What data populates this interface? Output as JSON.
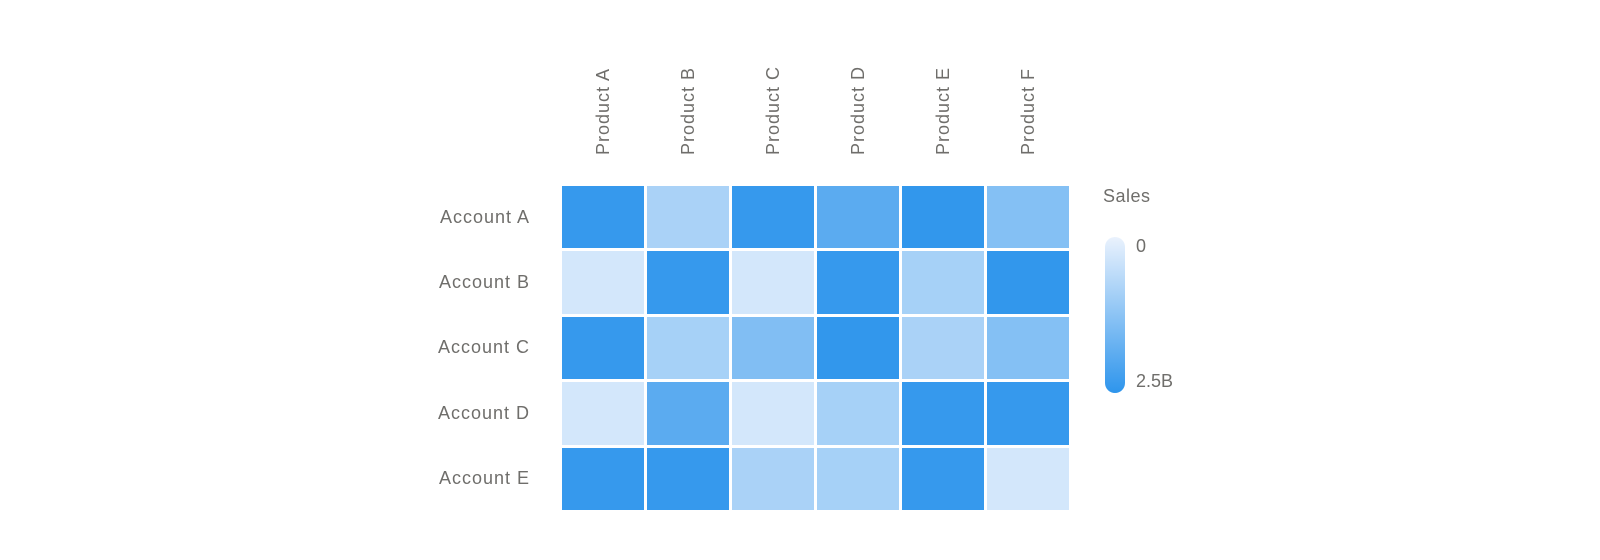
{
  "colors": {
    "background": "#FFFFFF",
    "label_text": "#6F6E6B",
    "cell_gap": "#FFFFFF"
  },
  "chart_data": {
    "type": "heatmap",
    "columns": [
      "Product A",
      "Product B",
      "Product C",
      "Product D",
      "Product E",
      "Product F"
    ],
    "rows": [
      "Account A",
      "Account B",
      "Account C",
      "Account D",
      "Account E"
    ],
    "value_unit": "billions (B)",
    "values": [
      [
        2.4,
        0.85,
        2.4,
        1.9,
        2.45,
        1.35
      ],
      [
        0.3,
        2.4,
        0.3,
        2.4,
        0.9,
        2.45
      ],
      [
        2.4,
        0.9,
        1.4,
        2.45,
        0.85,
        1.35
      ],
      [
        0.3,
        1.9,
        0.3,
        0.9,
        2.4,
        2.4
      ],
      [
        2.4,
        2.4,
        0.85,
        0.9,
        2.4,
        0.3
      ]
    ],
    "legend": {
      "title": "Sales",
      "min_label": "0",
      "max_label": "2.5B"
    },
    "scale": {
      "domain": [
        0,
        2.5
      ],
      "low_color": "#EAF2FD",
      "high_color": "#2E95EC"
    },
    "layout": {
      "legend_position": "right",
      "column_labels": "rotated-vertical",
      "grid": "white-gaps"
    }
  }
}
